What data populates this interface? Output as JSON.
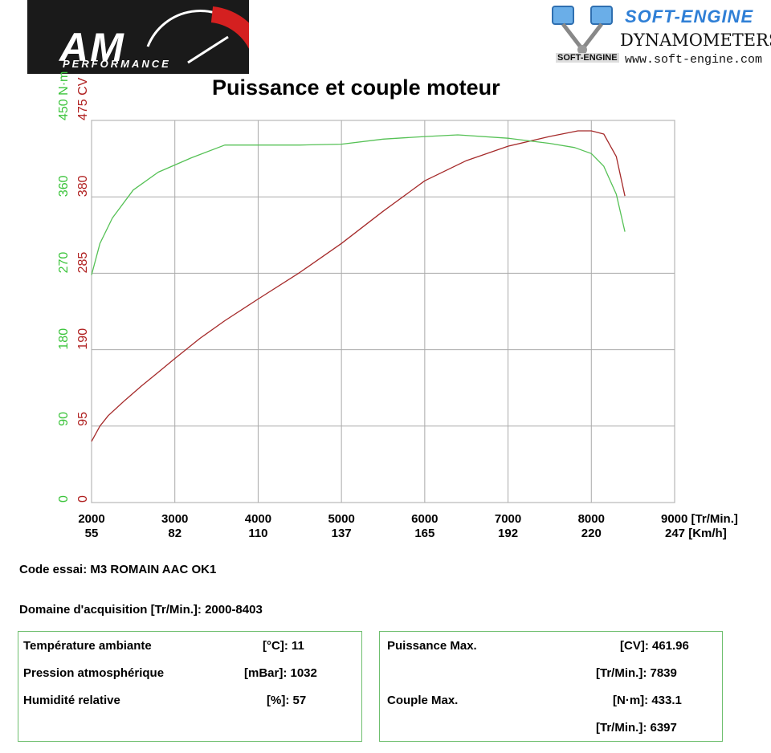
{
  "logos": {
    "am_text": "AM",
    "am_sub": "PERFORMANCE",
    "soft_title": "SOFT-ENGINE",
    "soft_dyn": "DYNAMOMETERS",
    "soft_web": "www.soft-engine.com",
    "soft_small": "SOFT-ENGINE"
  },
  "chart_data": {
    "type": "line",
    "title": "Puissance et couple moteur",
    "x_ticks": [
      2000,
      3000,
      4000,
      5000,
      6000,
      7000,
      8000,
      9000
    ],
    "x_unit": "[Tr/Min.]",
    "x2_ticks": [
      "55",
      "82",
      "110",
      "137",
      "165",
      "192",
      "220",
      "247"
    ],
    "x2_unit": "[Km/h]",
    "xlim": [
      2000,
      9000
    ],
    "y_torque_ticks": [
      0,
      90,
      180,
      270,
      360,
      450
    ],
    "y_torque_unit": "N·m",
    "y_power_ticks": [
      0,
      95,
      190,
      285,
      380,
      475
    ],
    "y_power_unit": "CV",
    "grid": true,
    "series": [
      {
        "name": "CV",
        "color": "#a52a2a",
        "x": [
          2000,
          2100,
          2200,
          2400,
          2600,
          2800,
          3000,
          3300,
          3600,
          4000,
          4500,
          5000,
          5500,
          6000,
          6500,
          7000,
          7500,
          7839,
          8000,
          8150,
          8300,
          8403
        ],
        "values": [
          76,
          95,
          108,
          127,
          145,
          162,
          179,
          204,
          226,
          253,
          286,
          322,
          362,
          400,
          425,
          443,
          455,
          462,
          462,
          458,
          430,
          381
        ]
      },
      {
        "name": "N·m",
        "color": "#55c155",
        "x": [
          2000,
          2100,
          2250,
          2500,
          2800,
          3200,
          3600,
          4000,
          4500,
          5000,
          5500,
          6000,
          6397,
          7000,
          7500,
          7800,
          8000,
          8150,
          8300,
          8403
        ],
        "values": [
          268,
          305,
          335,
          368,
          389,
          406,
          421,
          421,
          421,
          422,
          428,
          431,
          433,
          429,
          423,
          418,
          411,
          396,
          363,
          319
        ]
      }
    ]
  },
  "info": {
    "code_essai": "Code essai: M3 ROMAIN AAC OK1",
    "domaine": "Domaine d'acquisition [Tr/Min.]: 2000-8403"
  },
  "ambient": [
    {
      "label": "Température ambiante",
      "value": "[°C]: 11"
    },
    {
      "label": "Pression atmosphérique",
      "value": "[mBar]: 1032"
    },
    {
      "label": "Humidité relative",
      "value": "[%]: 57"
    }
  ],
  "max": {
    "power_label": "Puissance Max.",
    "power_value": "[CV]: 461.96",
    "power_rpm": "[Tr/Min.]: 7839",
    "torque_label": "Couple Max.",
    "torque_value": "[N·m]: 433.1",
    "torque_rpm": "[Tr/Min.]: 6397"
  }
}
